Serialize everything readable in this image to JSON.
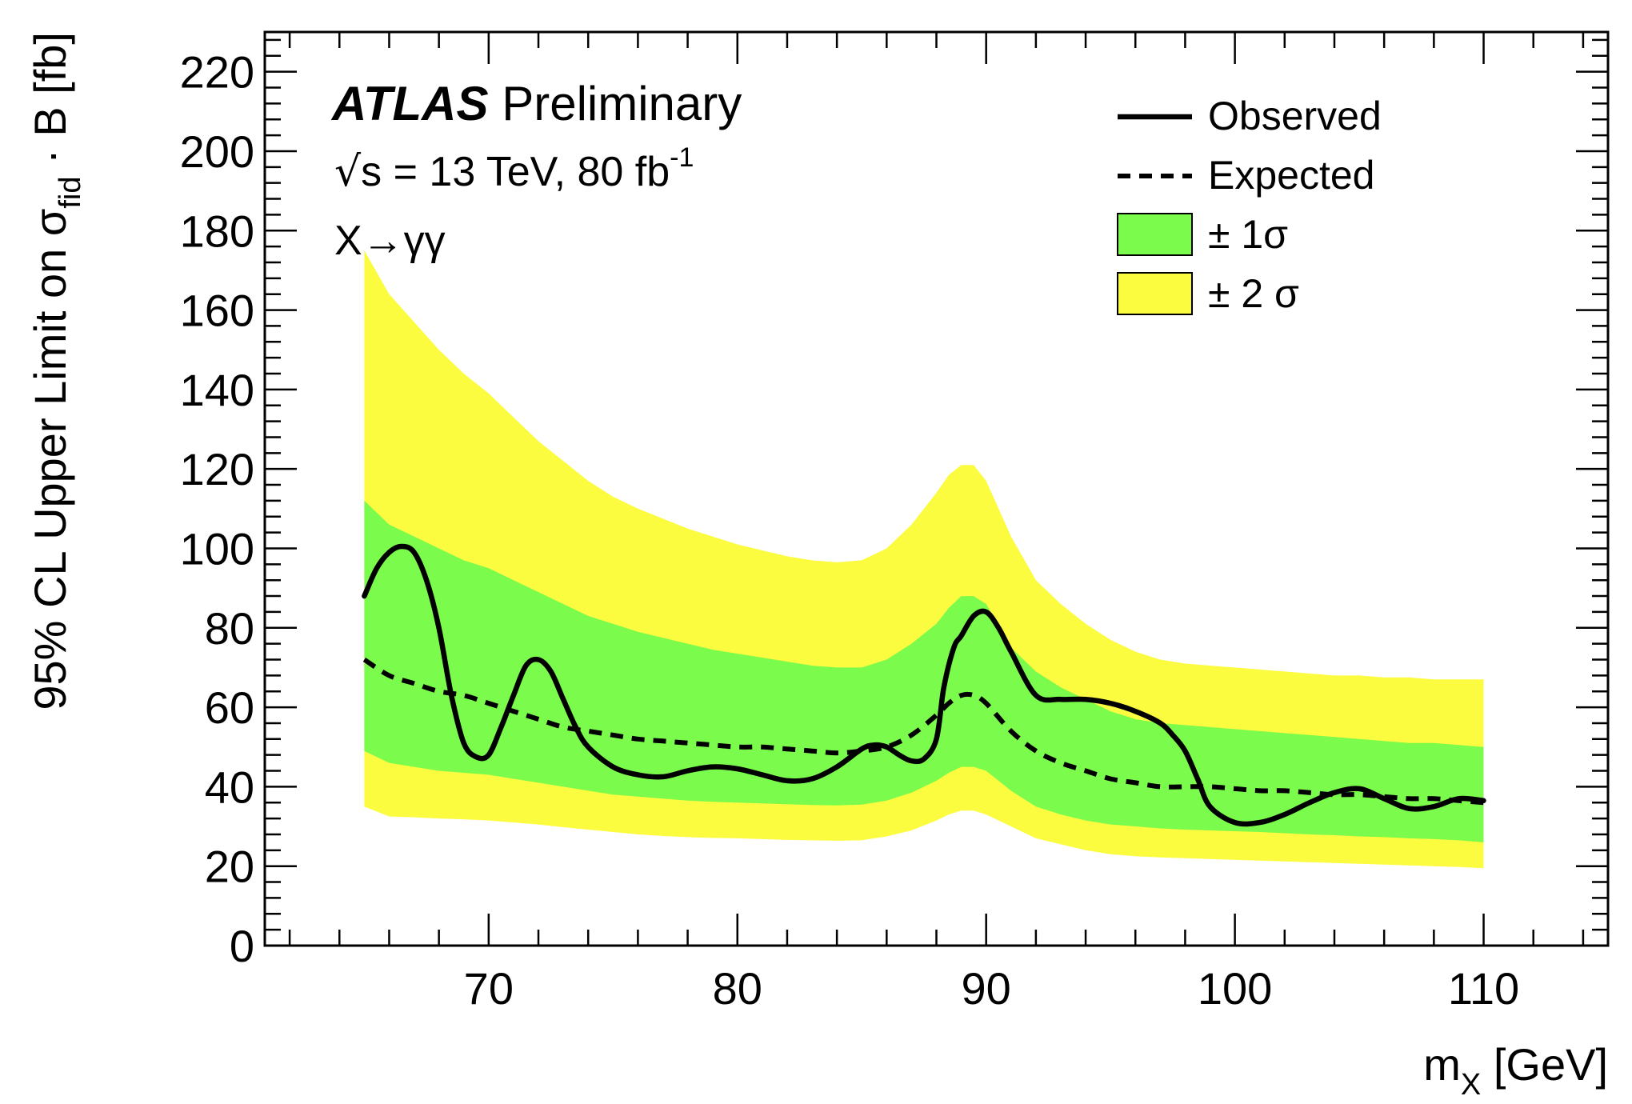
{
  "chart_data": {
    "type": "line",
    "xlim": [
      61,
      115
    ],
    "ylim": [
      0,
      230
    ],
    "x_ticks": [
      70,
      80,
      90,
      100,
      110
    ],
    "y_ticks": [
      0,
      20,
      40,
      60,
      80,
      100,
      120,
      140,
      160,
      180,
      200,
      220
    ],
    "xlabel_main": "m",
    "xlabel_sub": "X",
    "xlabel_unit": " [GeV]",
    "ylabel_main": "95% CL Upper Limit on σ",
    "ylabel_sub": "fid",
    "ylabel_tail": " · B [fb]",
    "annotations": {
      "experiment": "ATLAS",
      "status": " Preliminary",
      "sqrt_symbol": "√",
      "energy_text": "s = 13 TeV, 80 fb",
      "lumi_exponent": "-1",
      "process": "X→γγ"
    },
    "legend_position": "top-right",
    "legend": {
      "observed": "Observed",
      "expected": "Expected",
      "one_sigma": "± 1σ",
      "two_sigma": "± 2 σ"
    },
    "colors": {
      "one_sigma": "#7bfb4c",
      "two_sigma": "#fbfb3f",
      "line": "#000000"
    },
    "x": [
      65,
      66,
      67,
      68,
      69,
      70,
      71,
      72,
      73,
      74,
      75,
      76,
      77,
      78,
      79,
      80,
      81,
      82,
      83,
      84,
      85,
      86,
      87,
      88,
      88.5,
      89,
      89.5,
      90,
      91,
      92,
      93,
      94,
      95,
      96,
      97,
      98,
      99,
      100,
      101,
      102,
      103,
      104,
      105,
      106,
      107,
      108,
      109,
      110
    ],
    "series": [
      {
        "name": "Expected",
        "style": "dashed",
        "values": [
          72,
          68,
          66,
          64,
          63,
          61,
          59,
          57,
          55,
          54,
          53,
          52,
          51.5,
          51,
          50.5,
          50,
          50,
          49.5,
          49,
          48.5,
          49,
          50,
          53,
          58,
          61,
          63,
          63,
          61,
          54,
          49,
          46,
          44,
          42,
          41,
          40,
          40,
          40,
          39.5,
          39,
          39,
          38.5,
          38,
          38,
          37.5,
          37,
          37,
          36.5,
          36
        ]
      },
      {
        "name": "± 1σ upper",
        "values": [
          112,
          106,
          103,
          100,
          97,
          95,
          92,
          89,
          86,
          83,
          81,
          79,
          77.5,
          76,
          74.5,
          73.5,
          72.5,
          71.5,
          70.5,
          70,
          70,
          72,
          76,
          81,
          85,
          88,
          88,
          86,
          75,
          69,
          65,
          62,
          59,
          57,
          56,
          55.5,
          55,
          54.5,
          54,
          53.5,
          53,
          52.5,
          52,
          51.5,
          51,
          51,
          50.5,
          50
        ]
      },
      {
        "name": "± 1σ lower",
        "values": [
          49,
          46,
          45,
          44,
          43.5,
          43,
          42,
          41,
          40,
          39,
          38,
          37.5,
          37,
          36.5,
          36.2,
          36,
          35.8,
          35.6,
          35.4,
          35.3,
          35.5,
          36.5,
          38.5,
          41.5,
          43.5,
          45,
          45,
          44,
          39,
          35,
          33,
          31.5,
          30.5,
          30,
          29.5,
          29.2,
          29,
          28.8,
          28.6,
          28.3,
          28,
          27.8,
          27.5,
          27.3,
          27,
          26.8,
          26.5,
          26
        ]
      },
      {
        "name": "± 2σ upper",
        "values": [
          175,
          164,
          157,
          150,
          144,
          139,
          133,
          127,
          122,
          117,
          113,
          110,
          107.5,
          105,
          103,
          101,
          99.5,
          98,
          97,
          96.5,
          97,
          100,
          106,
          114,
          118.5,
          121,
          121,
          117,
          103,
          92,
          86,
          81,
          77,
          74,
          72,
          71,
          70.5,
          70,
          69.5,
          69,
          68.5,
          68,
          68,
          67.5,
          67.5,
          67,
          67,
          67
        ]
      },
      {
        "name": "± 2σ lower",
        "values": [
          35,
          32.5,
          32.3,
          32,
          31.8,
          31.5,
          31,
          30.5,
          29.8,
          29.2,
          28.6,
          28,
          27.6,
          27.3,
          27.1,
          27,
          26.8,
          26.6,
          26.5,
          26.4,
          26.5,
          27.5,
          29,
          31.5,
          33,
          34,
          34,
          33,
          30,
          27,
          25.5,
          24,
          23,
          22.5,
          22.2,
          22,
          21.8,
          21.6,
          21.4,
          21.2,
          21,
          20.8,
          20.6,
          20.4,
          20.2,
          20,
          19.8,
          19.5
        ]
      }
    ],
    "observed": {
      "name": "Observed",
      "style": "solid",
      "x": [
        65,
        65.5,
        66,
        66.5,
        67,
        67.5,
        68,
        68.5,
        69,
        69.5,
        70,
        70.5,
        71,
        71.5,
        72,
        72.5,
        73,
        73.5,
        74,
        75,
        76,
        77,
        78,
        79,
        80,
        81,
        82,
        83,
        84,
        85,
        85.5,
        86,
        86.5,
        87,
        87.5,
        88,
        88.3,
        88.7,
        89,
        89.5,
        90,
        90.5,
        91,
        92,
        93,
        94,
        95,
        96,
        97,
        97.5,
        98,
        98.5,
        99,
        100,
        101,
        102,
        103,
        104,
        105,
        106,
        107,
        108,
        109,
        110
      ],
      "values": [
        88,
        95,
        99,
        100.5,
        99,
        92,
        80,
        63,
        51,
        47.5,
        48,
        55,
        63,
        70.5,
        72,
        69,
        62,
        55,
        50,
        45,
        43,
        42.5,
        44,
        45,
        44.5,
        43,
        41.5,
        42,
        45,
        49.5,
        50.5,
        50,
        48,
        46.5,
        47,
        52,
        65,
        75,
        78,
        83,
        84,
        80,
        74,
        63,
        62,
        62,
        61,
        59,
        56,
        53,
        49,
        42,
        35,
        31,
        31,
        33,
        36,
        38.5,
        39.5,
        37,
        34.5,
        35,
        37,
        36.5
      ]
    }
  }
}
